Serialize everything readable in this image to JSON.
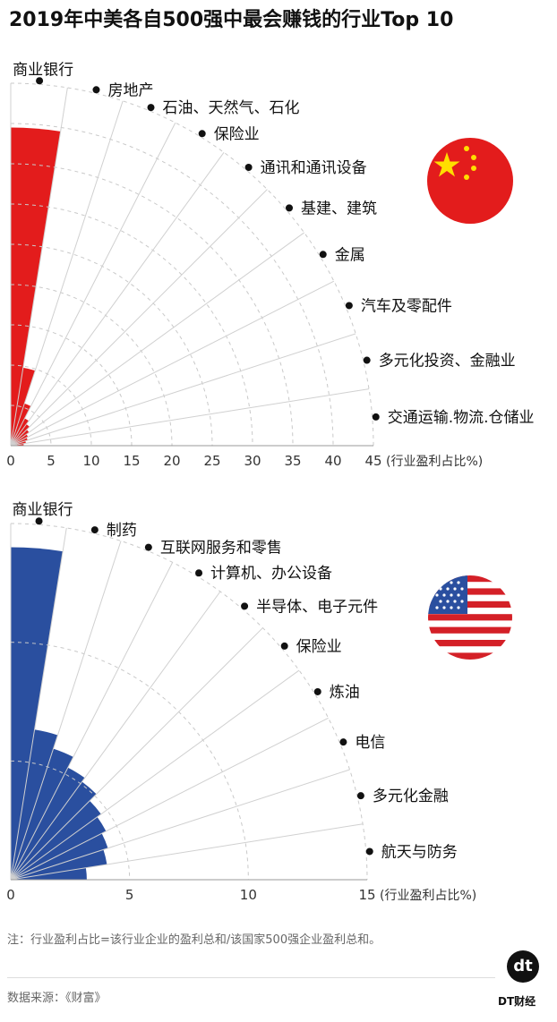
{
  "title": "2019年中美各自500强中最会赚钱的行业Top 10",
  "footnote": "注：行业盈利占比=该行业企业的盈利总和/该国家500强企业盈利总和。",
  "source": "数据来源：《财富》",
  "brand": {
    "logo_text": "dt",
    "name": "DT财经"
  },
  "flags": {
    "china": "china-flag-icon",
    "us": "us-flag-icon"
  },
  "chart_data": [
    {
      "type": "polar-bar",
      "country": "China",
      "color": "#e31c1c",
      "unit_label": "(行业盈利占比%)",
      "rmax": 45,
      "ticks": [
        0,
        5,
        10,
        15,
        20,
        25,
        30,
        35,
        40,
        45
      ],
      "categories": [
        "商业银行",
        "房地产",
        "石油、天然气、石化",
        "保险业",
        "通讯和通讯设备",
        "基建、建筑",
        "金属",
        "汽车及零配件",
        "多元化投资、金融业",
        "交通运输.物流.仓储业"
      ],
      "values": [
        39.5,
        9.8,
        5.5,
        3.8,
        3.3,
        2.8,
        2.4,
        2.2,
        1.9,
        1.6
      ]
    },
    {
      "type": "polar-bar",
      "country": "United States",
      "color": "#2a4f9f",
      "unit_label": "(行业盈利占比%)",
      "rmax": 15,
      "ticks": [
        0,
        5,
        10,
        15
      ],
      "categories": [
        "商业银行",
        "制药",
        "互联网服务和零售",
        "计算机、办公设备",
        "半导体、电子元件",
        "保险业",
        "炼油",
        "电信",
        "多元化金融",
        "航天与防务"
      ],
      "values": [
        14.0,
        6.4,
        5.8,
        5.3,
        5.1,
        4.7,
        4.5,
        4.3,
        4.1,
        3.2
      ]
    }
  ]
}
